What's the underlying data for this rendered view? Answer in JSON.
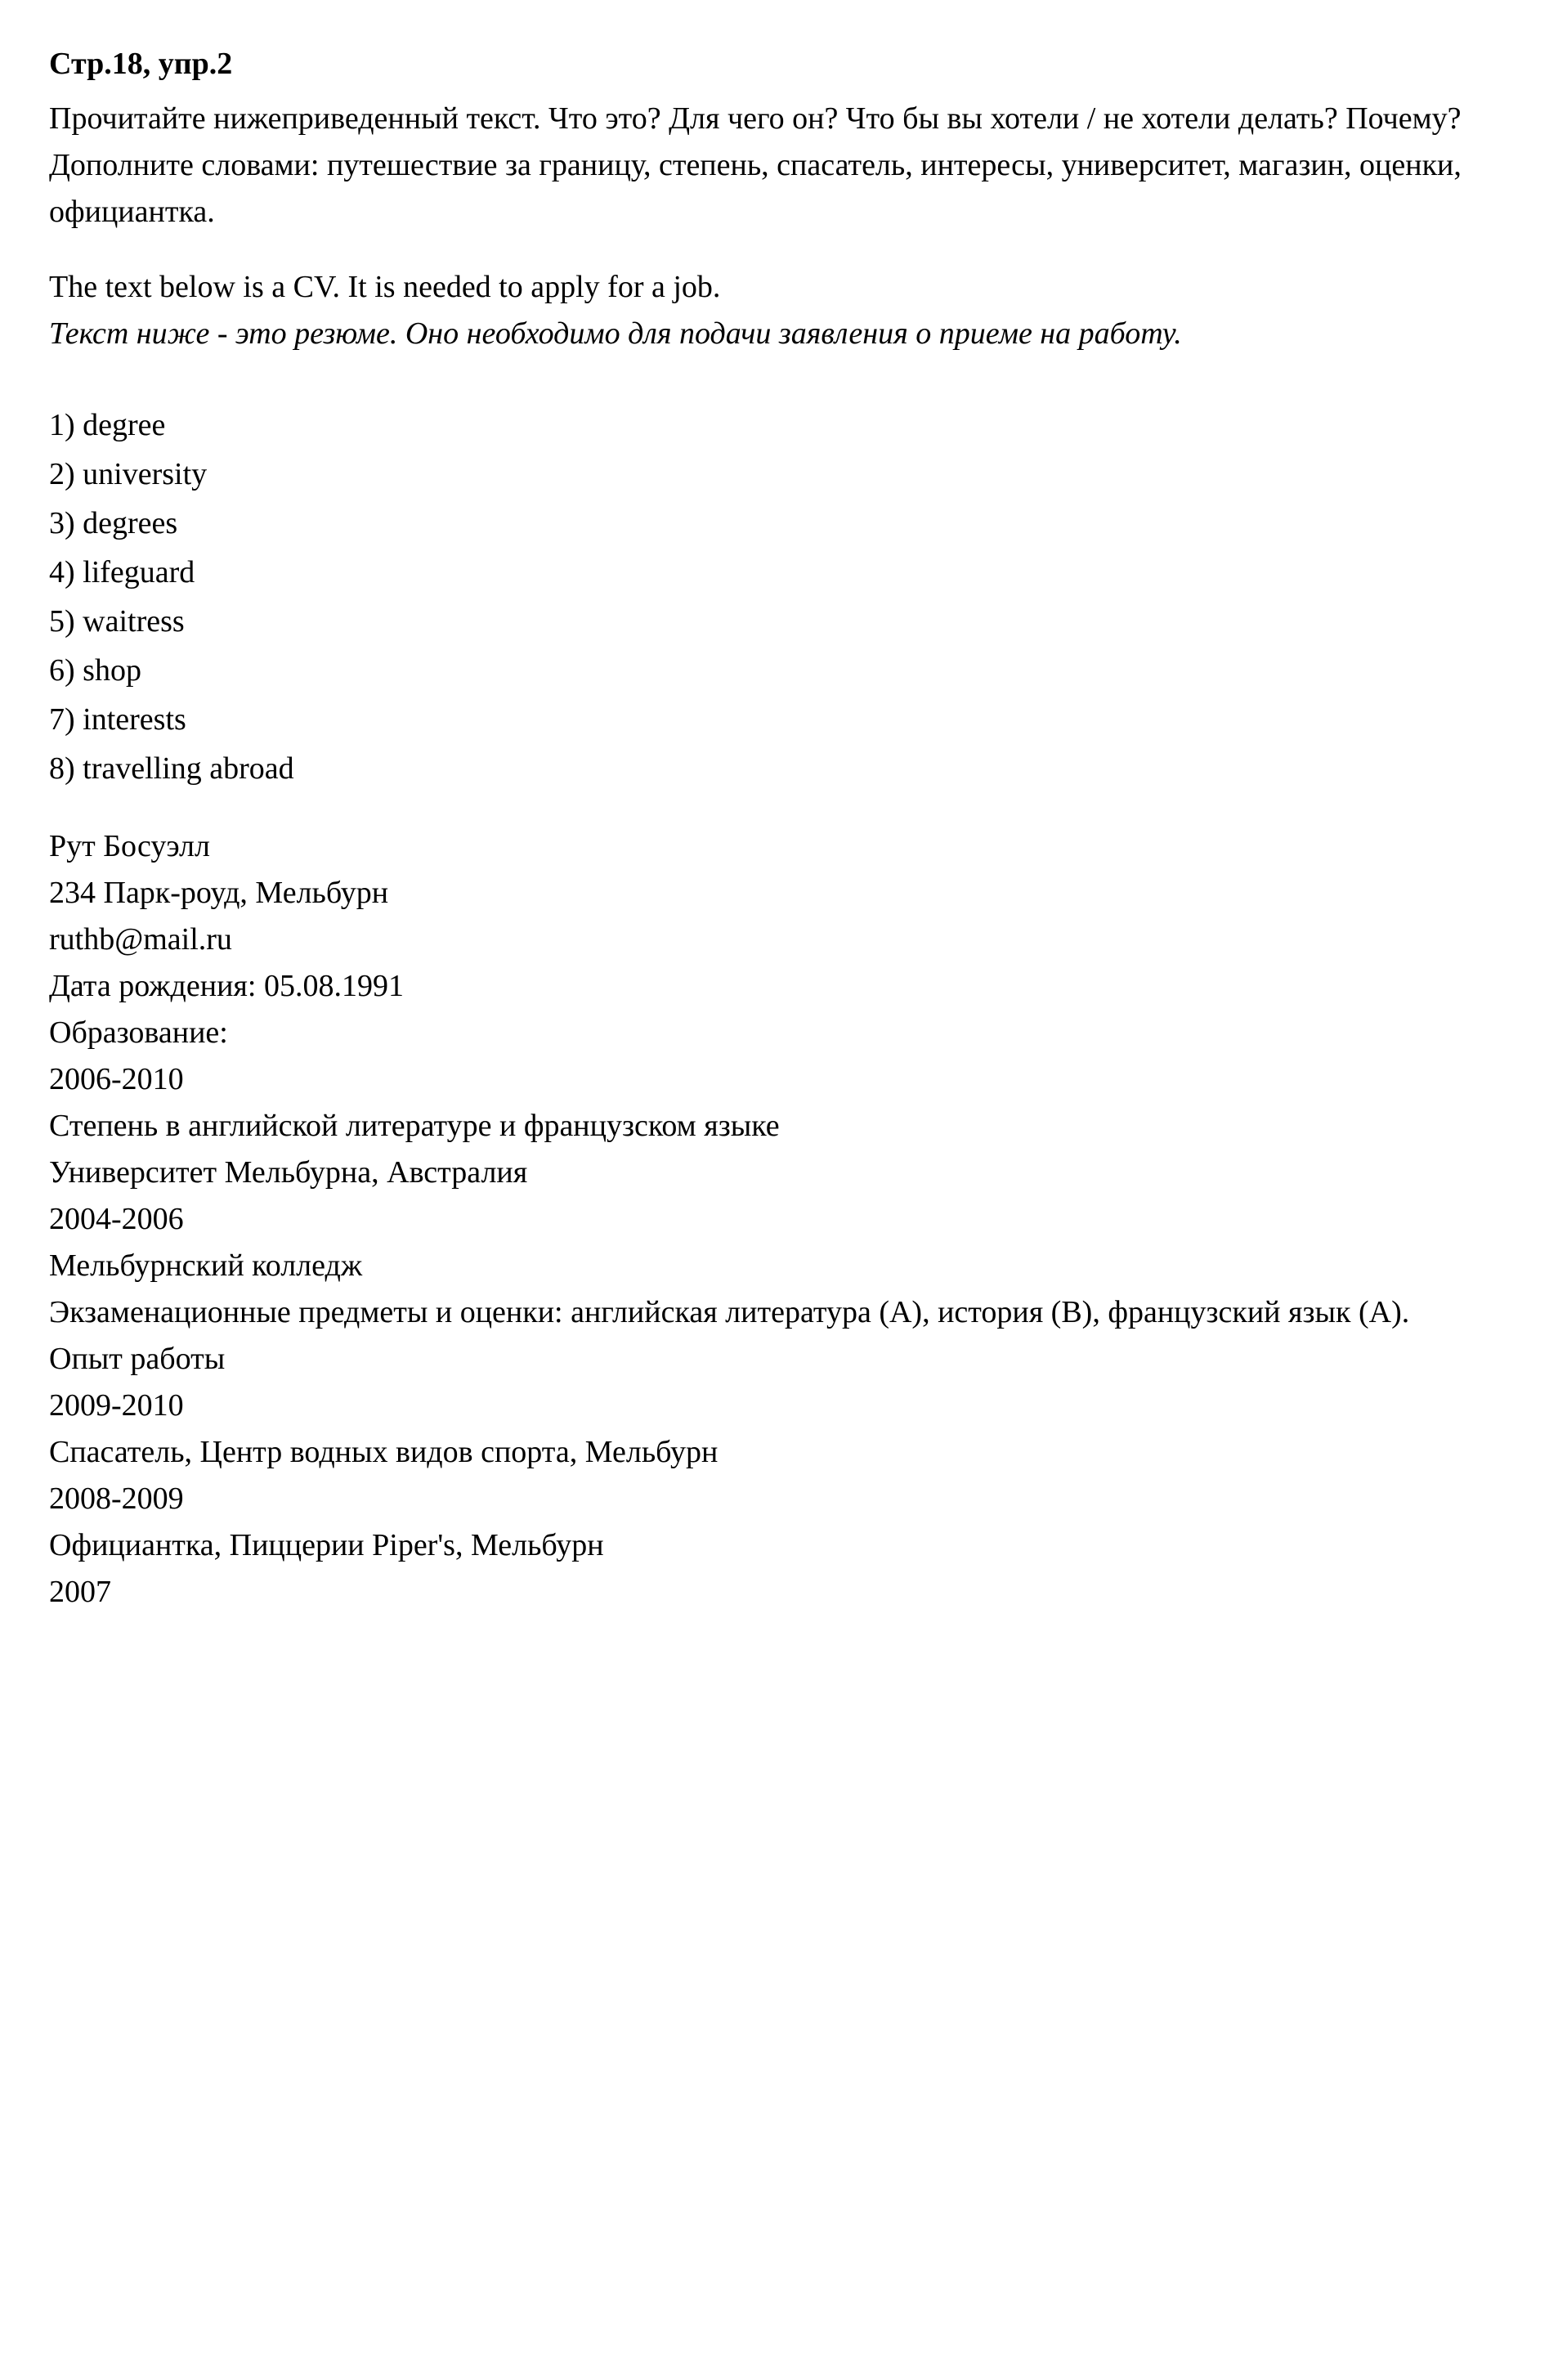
{
  "heading": "Стр.18, упр.2",
  "intro_paragraph": "Прочитайте нижеприведенный текст. Что это? Для чего он? Что бы вы хотели / не хотели делать? Почему? Дополните словами: путешествие за границу, степень, спасатель, интересы, университет, магазин, оценки, официантка.",
  "english_text": "The text below is a CV. It is needed to apply for a job.",
  "italic_translation": "Текст ниже - это резюме. Оно необходимо для подачи заявления о приеме на работу.",
  "answers": [
    "1) degree",
    "2) university",
    "3) degrees",
    "4) lifeguard",
    "5) waitress",
    "6) shop",
    "7) interests",
    "8) travelling abroad"
  ],
  "cv": {
    "name": "Рут Босуэлл",
    "address": "234 Парк-роуд, Мельбурн",
    "email": "ruthb@mail.ru",
    "dob_label": "Дата рождения: 05.08.1991",
    "education_label": "Образование:",
    "edu_period1": "2006-2010",
    "edu_desc1": "Степень в английской литературе и французском языке",
    "edu_place1": "Университет Мельбурна, Австралия",
    "edu_period2": "2004-2006",
    "edu_place2": "Мельбурнский колледж",
    "edu_desc2": "Экзаменационные предметы и оценки: английская литература (А), история (В), французский язык (А).",
    "work_label": "Опыт работы",
    "work_period1": "2009-2010",
    "work_desc1": "Спасатель, Центр водных видов спорта, Мельбурн",
    "work_period2": "2008-2009",
    "work_desc2": "Официантка, Пиццерии Piper's, Мельбурн",
    "work_period3": "2007"
  },
  "colors": {
    "background": "#ffffff",
    "text": "#000000"
  },
  "typography": {
    "font_family": "Georgia, Times New Roman, serif",
    "font_size_body": 38,
    "line_height": 1.5,
    "heading_weight": "bold"
  }
}
